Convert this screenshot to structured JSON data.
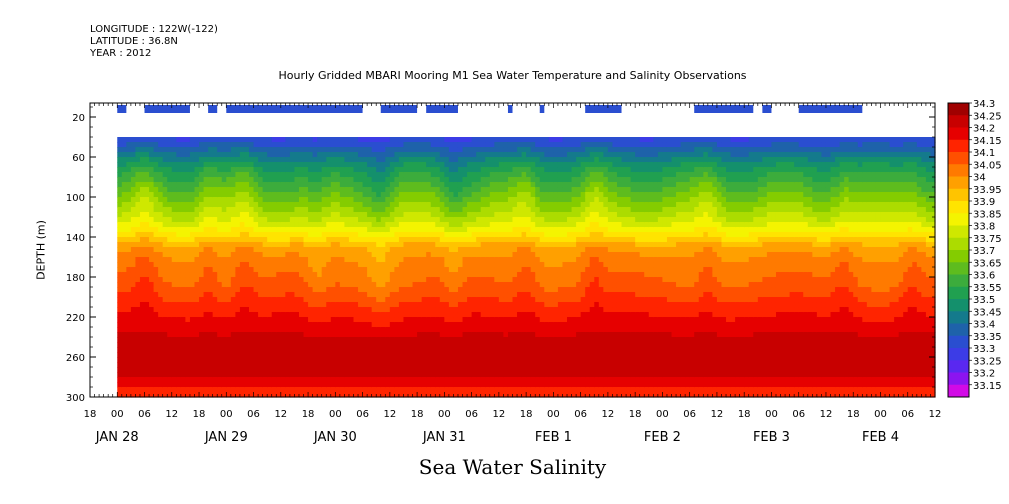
{
  "header": {
    "longitude": "LONGITUDE : 122W(-122)",
    "latitude": "LATITUDE : 36.8N",
    "year": "YEAR : 2012"
  },
  "chart_data": {
    "type": "heatmap",
    "title": "Hourly Gridded MBARI Mooring M1 Sea Water Temperature and Salinity Observations",
    "xlabel": "Sea Water Salinity",
    "ylabel": "DEPTH (m)",
    "x_axis": {
      "units": "hours since Jan 28 00:00, 2012",
      "range": [
        -6,
        180
      ],
      "hour_tick_labels": [
        "18",
        "00",
        "06",
        "12",
        "18",
        "00",
        "06",
        "12",
        "18",
        "00",
        "06",
        "12",
        "18",
        "00",
        "06",
        "12",
        "18",
        "00",
        "06",
        "12",
        "18",
        "00",
        "06",
        "12",
        "18",
        "00",
        "06",
        "12",
        "18",
        "00",
        "06",
        "12"
      ],
      "hour_tick_values": [
        -6,
        0,
        6,
        12,
        18,
        24,
        30,
        36,
        42,
        48,
        54,
        60,
        66,
        72,
        78,
        84,
        90,
        96,
        102,
        108,
        114,
        120,
        126,
        132,
        138,
        144,
        150,
        156,
        162,
        168,
        174,
        180
      ],
      "date_labels": [
        "JAN 28",
        "JAN 29",
        "JAN 30",
        "JAN 31",
        "FEB  1",
        "FEB  2",
        "FEB  3",
        "FEB  4"
      ],
      "date_values": [
        0,
        24,
        48,
        72,
        96,
        120,
        144,
        168
      ]
    },
    "y_axis": {
      "range": [
        300,
        6
      ],
      "ticks": [
        20,
        60,
        100,
        140,
        180,
        220,
        260,
        300
      ]
    },
    "data_start_hour": 0,
    "data_depth_top": 40,
    "colorbar": {
      "levels": [
        34.3,
        34.25,
        34.2,
        34.15,
        34.1,
        34.05,
        34,
        33.95,
        33.9,
        33.85,
        33.8,
        33.75,
        33.7,
        33.65,
        33.6,
        33.55,
        33.5,
        33.45,
        33.4,
        33.35,
        33.3,
        33.25,
        33.2,
        33.15
      ],
      "colors": [
        "#a00000",
        "#c80000",
        "#e60000",
        "#ff2400",
        "#ff5000",
        "#ff7a00",
        "#ffa000",
        "#ffc400",
        "#ffe400",
        "#f4f400",
        "#cfe800",
        "#acdc00",
        "#84cc00",
        "#5ebc1e",
        "#3cac3c",
        "#20a050",
        "#14906c",
        "#147a8c",
        "#1e62aa",
        "#2a4ed0",
        "#3c3ce6",
        "#5a28f0",
        "#8c14f0",
        "#d20ae6"
      ]
    },
    "surface_observations": {
      "depth": 12,
      "value_level": 33.35,
      "intervals_hours": [
        [
          0,
          2
        ],
        [
          6,
          16
        ],
        [
          20,
          22
        ],
        [
          24,
          54
        ],
        [
          58,
          66
        ],
        [
          68,
          75
        ],
        [
          86,
          87
        ],
        [
          93,
          94
        ],
        [
          103,
          111
        ],
        [
          127,
          140
        ],
        [
          142,
          144
        ],
        [
          150,
          164
        ]
      ]
    },
    "profile_depths": [
      40,
      50,
      60,
      70,
      80,
      90,
      100,
      110,
      120,
      130,
      140,
      150,
      160,
      170,
      180,
      190,
      200,
      210,
      220,
      230,
      240,
      250,
      260,
      270,
      280,
      290,
      300
    ],
    "profile_mean_salinity": [
      33.34,
      33.41,
      33.48,
      33.55,
      33.6,
      33.65,
      33.7,
      33.75,
      33.8,
      33.86,
      33.93,
      34.02,
      34.05,
      34.07,
      34.09,
      34.11,
      34.14,
      34.17,
      34.2,
      34.22,
      34.26,
      34.28,
      34.29,
      34.28,
      34.25,
      34.2,
      34.18
    ],
    "anomaly_events": [
      {
        "hour": 6,
        "sign": 1
      },
      {
        "hour": 20,
        "sign": 1
      },
      {
        "hour": 28,
        "sign": 1
      },
      {
        "hour": 44,
        "sign": -1
      },
      {
        "hour": 58,
        "sign": -1
      },
      {
        "hour": 74,
        "sign": -1
      },
      {
        "hour": 90,
        "sign": 1
      },
      {
        "hour": 105,
        "sign": 1
      },
      {
        "hour": 130,
        "sign": 1
      },
      {
        "hour": 160,
        "sign": 1
      },
      {
        "hour": 175,
        "sign": 1
      }
    ]
  }
}
